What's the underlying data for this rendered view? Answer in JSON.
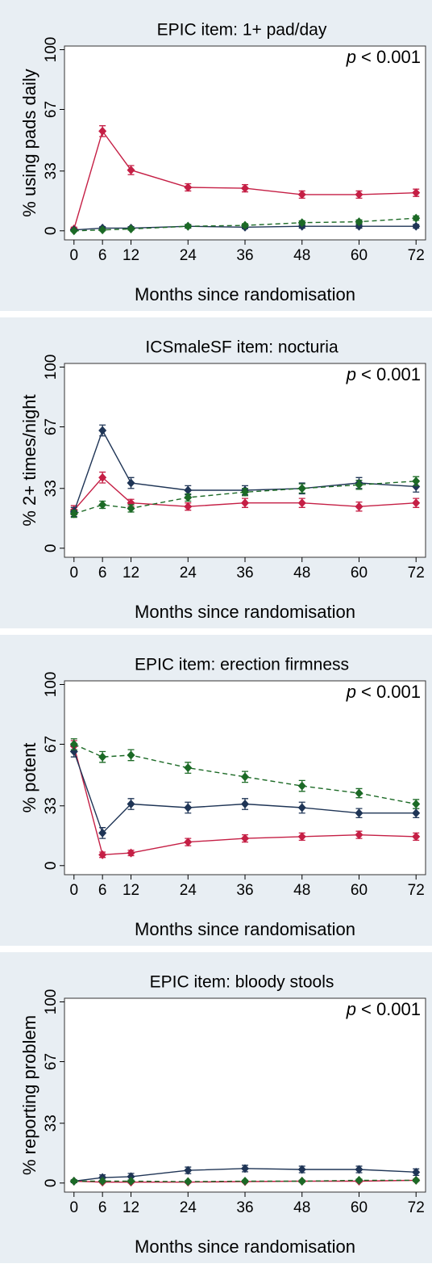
{
  "chart_data": [
    {
      "type": "line",
      "title": "EPIC item: 1+ pad/day",
      "ylabel": "% using pads daily",
      "xlabel": "Months since randomisation",
      "annotation_symbol": "p",
      "annotation": "< 0.001",
      "x": [
        0,
        6,
        12,
        24,
        36,
        48,
        60,
        72
      ],
      "xlim": [
        -2,
        74
      ],
      "xticks": [
        0,
        6,
        12,
        24,
        36,
        48,
        60,
        72
      ],
      "ylim": [
        -5,
        102
      ],
      "yticks": [
        0,
        33,
        67,
        100
      ],
      "series": [
        {
          "color": "#c51f45",
          "linestyle": "solid",
          "values": [
            1,
            55,
            33.5,
            24,
            23.5,
            20,
            20,
            21
          ],
          "errors": [
            1,
            3,
            2.5,
            2,
            2,
            2,
            2,
            2
          ]
        },
        {
          "color": "#1f3556",
          "linestyle": "solid",
          "values": [
            0.5,
            1.5,
            1.5,
            2.5,
            2,
            2.5,
            2.5,
            2.5
          ],
          "errors": [
            0.5,
            0.8,
            0.8,
            1,
            0.8,
            1,
            1,
            1
          ]
        },
        {
          "color": "#1c6a26",
          "linestyle": "dashed",
          "values": [
            0,
            0.5,
            1,
            2.5,
            3,
            4.5,
            5,
            7
          ],
          "errors": [
            0.3,
            0.5,
            0.6,
            0.8,
            0.9,
            1,
            1,
            1.2
          ]
        }
      ]
    },
    {
      "type": "line",
      "title": "ICSmaleSF item: nocturia",
      "ylabel": "% 2+ times/night",
      "xlabel": "Months since randomisation",
      "annotation_symbol": "p",
      "annotation": "< 0.001",
      "x": [
        0,
        6,
        12,
        24,
        36,
        48,
        60,
        72
      ],
      "xlim": [
        -2,
        74
      ],
      "xticks": [
        0,
        6,
        12,
        24,
        36,
        48,
        60,
        72
      ],
      "ylim": [
        -5,
        102
      ],
      "yticks": [
        0,
        33,
        67,
        100
      ],
      "series": [
        {
          "color": "#c51f45",
          "linestyle": "solid",
          "values": [
            21,
            39,
            25,
            23,
            25,
            25,
            23,
            25
          ],
          "errors": [
            2.5,
            3,
            2,
            2,
            2.5,
            2.5,
            2.5,
            2.5
          ]
        },
        {
          "color": "#1f3556",
          "linestyle": "solid",
          "values": [
            20,
            65,
            36,
            32,
            32,
            33,
            36,
            34
          ],
          "errors": [
            2.5,
            3,
            3,
            2.5,
            2.5,
            3,
            3,
            3
          ]
        },
        {
          "color": "#1c6a26",
          "linestyle": "dashed",
          "values": [
            19,
            24,
            22,
            28,
            31,
            33,
            35,
            37
          ],
          "errors": [
            2,
            2,
            2,
            2,
            2,
            2.5,
            2.5,
            2.5
          ]
        }
      ]
    },
    {
      "type": "line",
      "title": "EPIC item: erection firmness",
      "ylabel": "% potent",
      "xlabel": "Months since randomisation",
      "annotation_symbol": "p",
      "annotation": "< 0.001",
      "x": [
        0,
        6,
        12,
        24,
        36,
        48,
        60,
        72
      ],
      "xlim": [
        -2,
        74
      ],
      "xticks": [
        0,
        6,
        12,
        24,
        36,
        48,
        60,
        72
      ],
      "ylim": [
        -5,
        102
      ],
      "yticks": [
        0,
        33,
        67,
        100
      ],
      "series": [
        {
          "color": "#c51f45",
          "linestyle": "solid",
          "values": [
            66,
            6,
            7,
            13,
            15,
            16,
            17,
            16
          ],
          "errors": [
            3,
            1.5,
            1.5,
            2,
            2,
            2,
            2,
            2
          ]
        },
        {
          "color": "#1f3556",
          "linestyle": "solid",
          "values": [
            63,
            18,
            34,
            32,
            34,
            32,
            29,
            29
          ],
          "errors": [
            3,
            3,
            3,
            3,
            3,
            3,
            2.5,
            2.5
          ]
        },
        {
          "color": "#1c6a26",
          "linestyle": "dashed",
          "values": [
            67,
            60,
            61,
            54,
            49,
            44,
            40,
            34
          ],
          "errors": [
            3,
            3,
            3,
            3,
            3,
            3,
            2.5,
            2.5
          ]
        }
      ]
    },
    {
      "type": "line",
      "title": "EPIC item: bloody stools",
      "ylabel": "% reporting problem",
      "xlabel": "Months since randomisation",
      "annotation_symbol": "p",
      "annotation": "< 0.001",
      "x": [
        0,
        6,
        12,
        24,
        36,
        48,
        60,
        72
      ],
      "xlim": [
        -2,
        74
      ],
      "xticks": [
        0,
        6,
        12,
        24,
        36,
        48,
        60,
        72
      ],
      "ylim": [
        -5,
        102
      ],
      "yticks": [
        0,
        33,
        67,
        100
      ],
      "series": [
        {
          "color": "#c51f45",
          "linestyle": "solid",
          "values": [
            1,
            0.5,
            0.5,
            0.5,
            0.8,
            1,
            1,
            1.5
          ],
          "errors": [
            0.5,
            0.4,
            0.4,
            0.4,
            0.5,
            0.5,
            0.5,
            0.6
          ]
        },
        {
          "color": "#1f3556",
          "linestyle": "solid",
          "values": [
            1,
            3,
            3.5,
            7,
            8,
            7.5,
            7.5,
            6
          ],
          "errors": [
            0.8,
            1.5,
            1.8,
            1.8,
            1.8,
            1.8,
            1.8,
            1.8
          ]
        },
        {
          "color": "#1c6a26",
          "linestyle": "dashed",
          "values": [
            1,
            1,
            1,
            0.8,
            1,
            1,
            1.5,
            1.5
          ],
          "errors": [
            0.5,
            0.5,
            0.5,
            0.5,
            0.5,
            0.5,
            0.6,
            0.6
          ]
        }
      ]
    }
  ]
}
